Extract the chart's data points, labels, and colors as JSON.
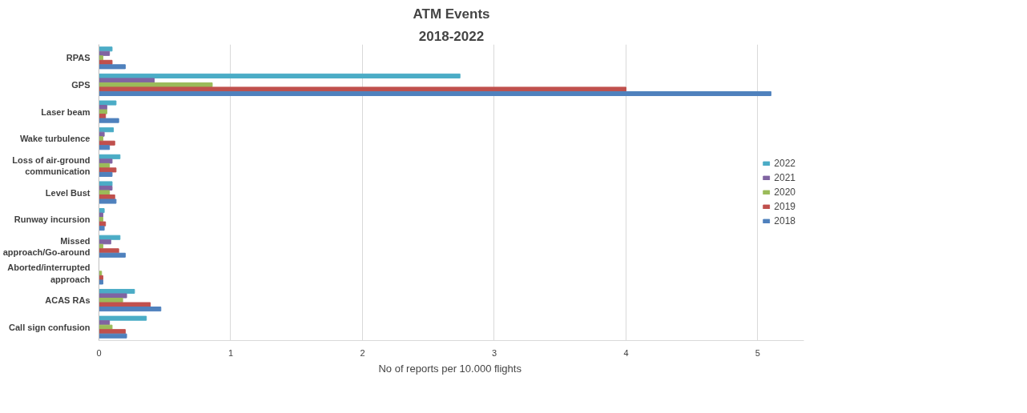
{
  "chart_data": {
    "type": "bar",
    "orientation": "horizontal",
    "title": "ATM Events",
    "subtitle": "2018-2022",
    "xlabel": "No of reports per 10.000  flights",
    "categories": [
      "RPAS",
      "GPS",
      "Laser beam",
      "Wake turbulence",
      "Loss of air-ground communication",
      "Level Bust",
      "Runway incursion",
      "Missed approach/Go-around",
      "Aborted/interrupted approach",
      "ACAS RAs",
      "Call sign confusion"
    ],
    "series": [
      {
        "name": "2022",
        "color": "#4bacc6",
        "values": [
          0.1,
          2.74,
          0.13,
          0.11,
          0.16,
          0.1,
          0.04,
          0.16,
          0,
          0.27,
          0.36
        ]
      },
      {
        "name": "2021",
        "color": "#8064a2",
        "values": [
          0.08,
          0.42,
          0.06,
          0.04,
          0.1,
          0.1,
          0.03,
          0.09,
          0,
          0.21,
          0.08
        ]
      },
      {
        "name": "2020",
        "color": "#9bbb59",
        "values": [
          0.03,
          0.86,
          0.06,
          0.03,
          0.08,
          0.08,
          0.03,
          0.03,
          0.02,
          0.18,
          0.1
        ]
      },
      {
        "name": "2019",
        "color": "#c0504d",
        "values": [
          0.1,
          4.0,
          0.05,
          0.12,
          0.13,
          0.12,
          0.05,
          0.15,
          0.03,
          0.39,
          0.2
        ]
      },
      {
        "name": "2018",
        "color": "#4f81bd",
        "values": [
          0.2,
          5.1,
          0.15,
          0.08,
          0.1,
          0.13,
          0.04,
          0.2,
          0.03,
          0.47,
          0.21
        ]
      }
    ],
    "xlim": [
      0,
      5.35
    ],
    "xticks": [
      0,
      1,
      2,
      3,
      4,
      5
    ],
    "grid": "x",
    "legend": "right"
  }
}
